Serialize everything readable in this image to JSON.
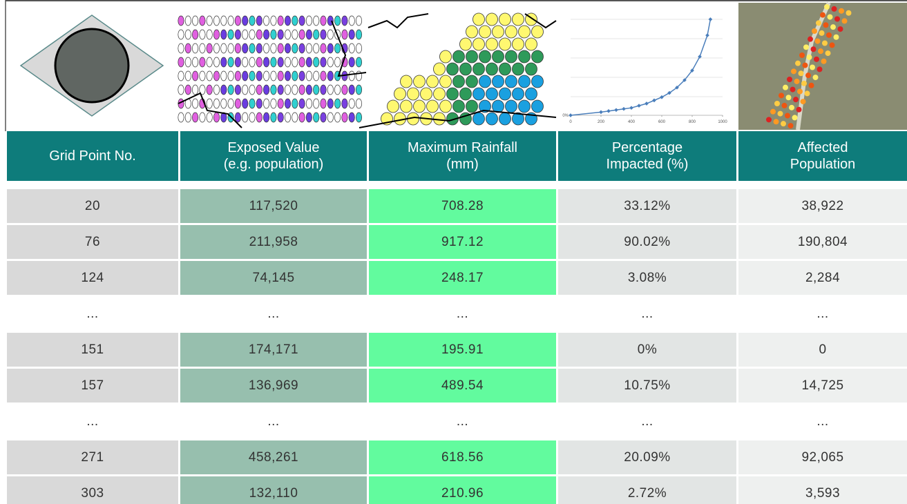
{
  "table": {
    "header": [
      [
        "Grid Point No."
      ],
      [
        "Exposed Value",
        "(e.g. population)"
      ],
      [
        "Maximum Rainfall",
        "(mm)"
      ],
      [
        "Percentage",
        "Impacted (%)"
      ],
      [
        "Affected",
        "Population"
      ]
    ],
    "rows": [
      [
        "20",
        "117,520",
        "708.28",
        "33.12%",
        "38,922"
      ],
      [
        "76",
        "211,958",
        "917.12",
        "90.02%",
        "190,804"
      ],
      [
        "124",
        "74,145",
        "248.17",
        "3.08%",
        "2,284"
      ],
      [
        "...",
        "...",
        "...",
        "...",
        "..."
      ],
      [
        "151",
        "174,171",
        "195.91",
        "0%",
        "0"
      ],
      [
        "157",
        "136,969",
        "489.54",
        "10.75%",
        "14,725"
      ],
      [
        "...",
        "...",
        "...",
        "...",
        "..."
      ],
      [
        "271",
        "458,261",
        "618.56",
        "20.09%",
        "92,065"
      ],
      [
        "303",
        "132,110",
        "210.96",
        "2.72%",
        "3,593"
      ]
    ]
  },
  "chart_data": {
    "type": "line",
    "x": [
      0,
      200,
      250,
      300,
      350,
      400,
      450,
      500,
      550,
      600,
      650,
      700,
      750,
      800,
      850,
      900,
      920
    ],
    "series": [
      {
        "color": "#4a7ebb",
        "values": [
          0,
          3,
          4,
          5,
          6,
          7,
          9,
          11,
          14,
          17,
          21,
          26,
          33,
          42,
          55,
          75,
          90
        ]
      }
    ],
    "xlim": [
      0,
      1000
    ],
    "xticks": [
      0,
      200,
      400,
      600,
      800,
      1000
    ],
    "ylim": [
      0,
      90
    ],
    "yticks": [
      {
        "value": 0,
        "label": "0%"
      }
    ]
  }
}
